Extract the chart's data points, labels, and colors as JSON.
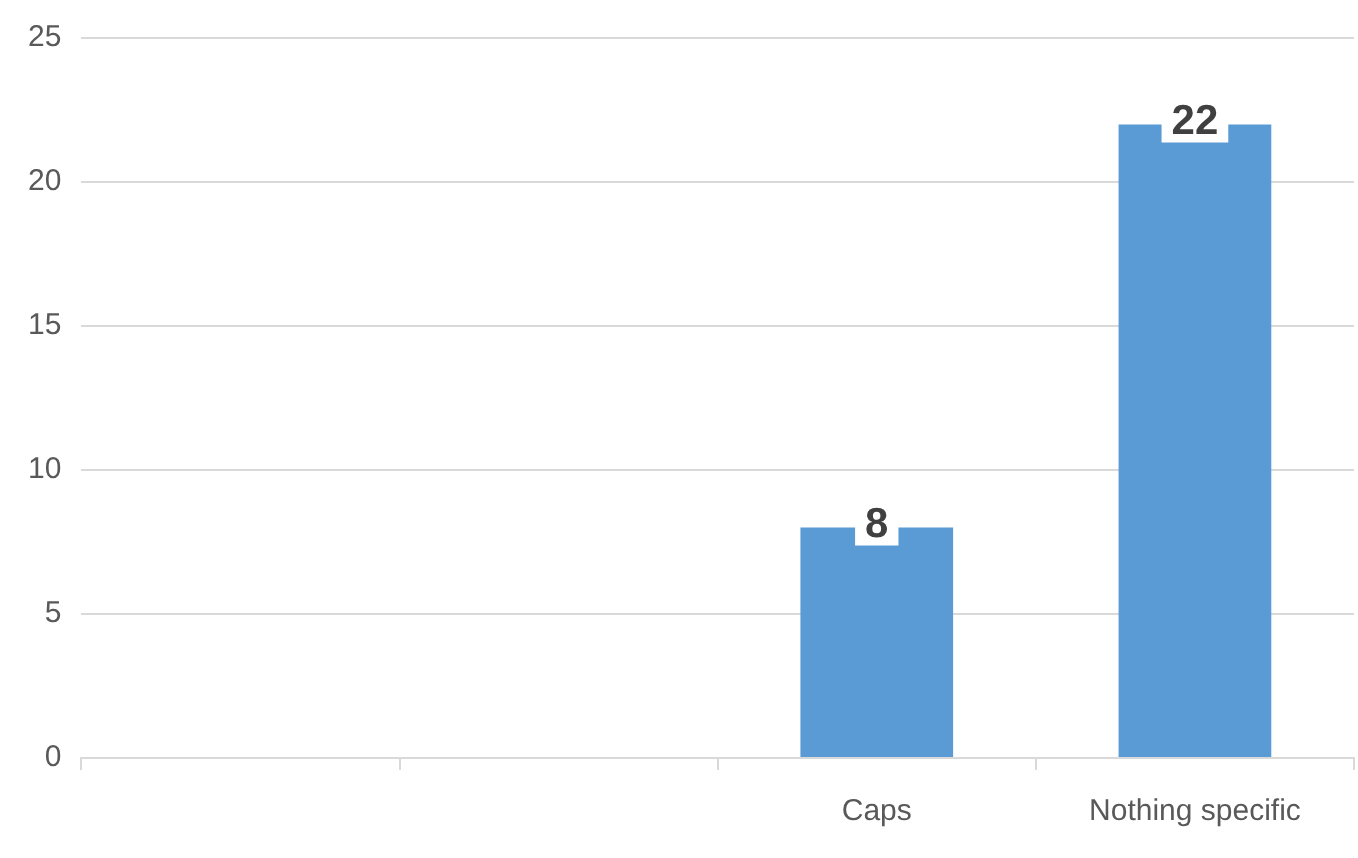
{
  "chart_data": {
    "type": "bar",
    "categories": [
      null,
      null,
      "Caps",
      "Nothing specific"
    ],
    "values": [
      null,
      null,
      8,
      22
    ],
    "color": "#5b9bd5",
    "ylim": [
      0,
      25
    ],
    "yticks": [
      0,
      5,
      10,
      15,
      20,
      25
    ],
    "grid": "y",
    "data_labels": true
  }
}
